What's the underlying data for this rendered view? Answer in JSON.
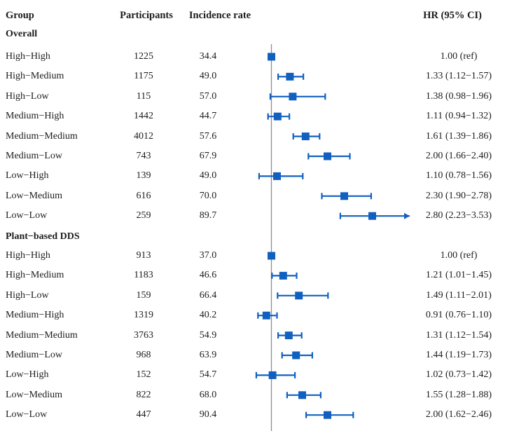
{
  "colors": {
    "marker_blue": "#1160c0",
    "reference_line_gray": "#8c8c8c",
    "text": "#1c1c1c"
  },
  "header": {
    "group": "Group",
    "participants": "Participants",
    "incidence": "Incidence rate",
    "hr": "HR (95% CI)"
  },
  "chart_data": {
    "type": "forest",
    "x_reference_value": 1.0,
    "x_axis_visible": false,
    "marker_shape": "square",
    "sections": [
      {
        "label": "Overall",
        "rows": [
          {
            "group": "High−High",
            "participants": "1225",
            "incidence": "34.4",
            "hr_text": "1.00 (ref)",
            "hr": 1.0,
            "lo": null,
            "hi": null
          },
          {
            "group": "High−Medium",
            "participants": "1175",
            "incidence": "49.0",
            "hr_text": "1.33 (1.12−1.57)",
            "hr": 1.33,
            "lo": 1.12,
            "hi": 1.57
          },
          {
            "group": "High−Low",
            "participants": "115",
            "incidence": "57.0",
            "hr_text": "1.38 (0.98−1.96)",
            "hr": 1.38,
            "lo": 0.98,
            "hi": 1.96
          },
          {
            "group": "Medium−High",
            "participants": "1442",
            "incidence": "44.7",
            "hr_text": "1.11 (0.94−1.32)",
            "hr": 1.11,
            "lo": 0.94,
            "hi": 1.32
          },
          {
            "group": "Medium−Medium",
            "participants": "4012",
            "incidence": "57.6",
            "hr_text": "1.61 (1.39−1.86)",
            "hr": 1.61,
            "lo": 1.39,
            "hi": 1.86
          },
          {
            "group": "Medium−Low",
            "participants": "743",
            "incidence": "67.9",
            "hr_text": "2.00 (1.66−2.40)",
            "hr": 2.0,
            "lo": 1.66,
            "hi": 2.4
          },
          {
            "group": "Low−High",
            "participants": "139",
            "incidence": "49.0",
            "hr_text": "1.10 (0.78−1.56)",
            "hr": 1.1,
            "lo": 0.78,
            "hi": 1.56
          },
          {
            "group": "Low−Medium",
            "participants": "616",
            "incidence": "70.0",
            "hr_text": "2.30 (1.90−2.78)",
            "hr": 2.3,
            "lo": 1.9,
            "hi": 2.78
          },
          {
            "group": "Low−Low",
            "participants": "259",
            "incidence": "89.7",
            "hr_text": "2.80 (2.23−3.53)",
            "hr": 2.8,
            "lo": 2.23,
            "hi": 3.53
          }
        ]
      },
      {
        "label": "Plant−based DDS",
        "rows": [
          {
            "group": "High−High",
            "participants": "913",
            "incidence": "37.0",
            "hr_text": "1.00 (ref)",
            "hr": 1.0,
            "lo": null,
            "hi": null
          },
          {
            "group": "High−Medium",
            "participants": "1183",
            "incidence": "46.6",
            "hr_text": "1.21 (1.01−1.45)",
            "hr": 1.21,
            "lo": 1.01,
            "hi": 1.45
          },
          {
            "group": "High−Low",
            "participants": "159",
            "incidence": "66.4",
            "hr_text": "1.49 (1.11−2.01)",
            "hr": 1.49,
            "lo": 1.11,
            "hi": 2.01
          },
          {
            "group": "Medium−High",
            "participants": "1319",
            "incidence": "40.2",
            "hr_text": "0.91 (0.76−1.10)",
            "hr": 0.91,
            "lo": 0.76,
            "hi": 1.1
          },
          {
            "group": "Medium−Medium",
            "participants": "3763",
            "incidence": "54.9",
            "hr_text": "1.31 (1.12−1.54)",
            "hr": 1.31,
            "lo": 1.12,
            "hi": 1.54
          },
          {
            "group": "Medium−Low",
            "participants": "968",
            "incidence": "63.9",
            "hr_text": "1.44 (1.19−1.73)",
            "hr": 1.44,
            "lo": 1.19,
            "hi": 1.73
          },
          {
            "group": "Low−High",
            "participants": "152",
            "incidence": "54.7",
            "hr_text": "1.02 (0.73−1.42)",
            "hr": 1.02,
            "lo": 0.73,
            "hi": 1.42
          },
          {
            "group": "Low−Medium",
            "participants": "822",
            "incidence": "68.0",
            "hr_text": "1.55 (1.28−1.88)",
            "hr": 1.55,
            "lo": 1.28,
            "hi": 1.88
          },
          {
            "group": "Low−Low",
            "participants": "447",
            "incidence": "90.4",
            "hr_text": "2.00 (1.62−2.46)",
            "hr": 2.0,
            "lo": 1.62,
            "hi": 2.46
          }
        ]
      }
    ]
  }
}
